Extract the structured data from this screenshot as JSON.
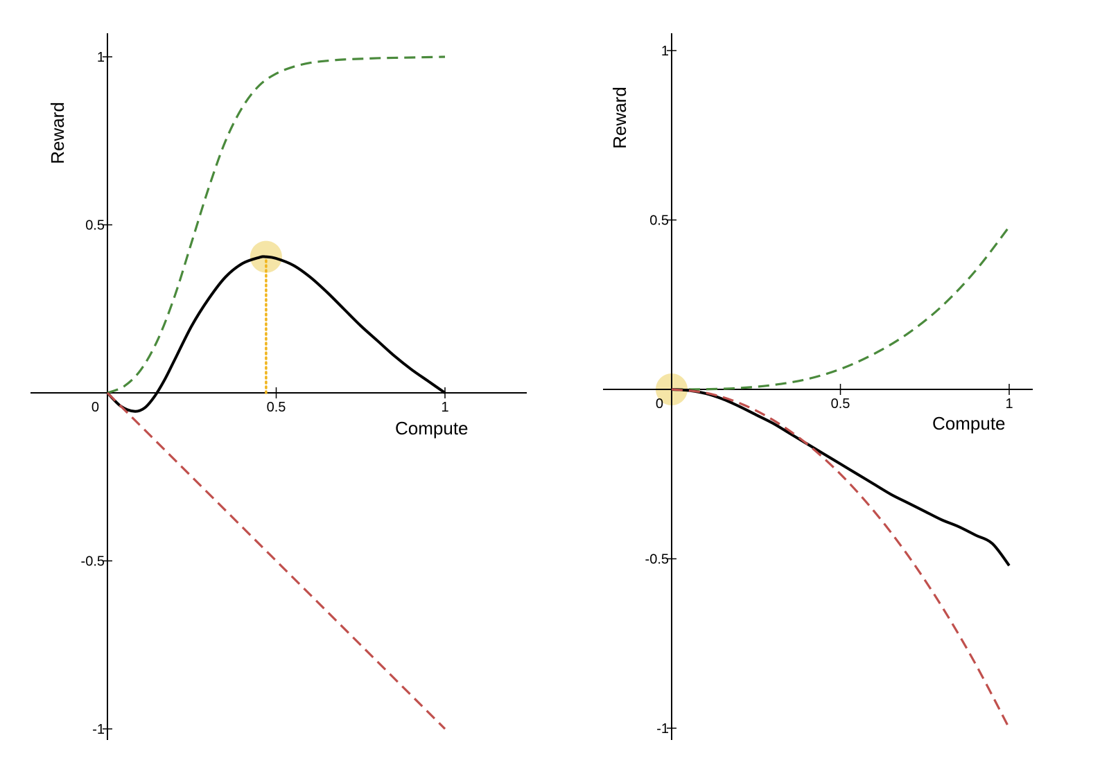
{
  "chart_data": [
    {
      "type": "line",
      "xlabel": "Compute",
      "ylabel": "Reward",
      "xlim": [
        0,
        1
      ],
      "ylim": [
        -1,
        1
      ],
      "x_ticks": [
        {
          "value": 0,
          "label": "0"
        },
        {
          "value": 0.5,
          "label": "0.5"
        },
        {
          "value": 1,
          "label": "1"
        }
      ],
      "y_ticks": [
        {
          "value": 1,
          "label": "1"
        },
        {
          "value": 0.5,
          "label": "0.5"
        },
        {
          "value": -0.5,
          "label": "-0.5"
        },
        {
          "value": -1,
          "label": "-1"
        }
      ],
      "series": [
        {
          "style": "dashed",
          "color": "#4a8a3c",
          "x": [
            0,
            0.05,
            0.1,
            0.15,
            0.2,
            0.25,
            0.3,
            0.35,
            0.4,
            0.45,
            0.5,
            0.55,
            0.6,
            0.65,
            0.7,
            0.75,
            0.8,
            0.85,
            0.9,
            0.95,
            1
          ],
          "y": [
            0,
            0.02,
            0.07,
            0.16,
            0.29,
            0.45,
            0.61,
            0.75,
            0.85,
            0.915,
            0.95,
            0.97,
            0.982,
            0.988,
            0.992,
            0.994,
            0.996,
            0.997,
            0.998,
            0.999,
            1
          ]
        },
        {
          "style": "solid",
          "color": "#000000",
          "x": [
            0,
            0.04,
            0.08,
            0.11,
            0.14,
            0.17,
            0.2,
            0.25,
            0.3,
            0.35,
            0.4,
            0.45,
            0.47,
            0.5,
            0.55,
            0.6,
            0.65,
            0.7,
            0.75,
            0.8,
            0.85,
            0.9,
            0.95,
            1
          ],
          "y": [
            0,
            -0.04,
            -0.055,
            -0.045,
            -0.01,
            0.04,
            0.1,
            0.2,
            0.28,
            0.345,
            0.385,
            0.403,
            0.405,
            0.4,
            0.38,
            0.345,
            0.3,
            0.25,
            0.2,
            0.155,
            0.11,
            0.07,
            0.035,
            0
          ]
        },
        {
          "style": "dashed",
          "color": "#c0504d",
          "x": [
            0,
            0.25,
            0.5,
            0.75,
            1
          ],
          "y": [
            0,
            -0.25,
            -0.5,
            -0.75,
            -1
          ]
        }
      ],
      "highlight_point": {
        "x": 0.47,
        "y": 0.405,
        "color": "#f2dc8a"
      },
      "drop_line": {
        "x": 0.47,
        "from_y": 0,
        "to_y": 0.405,
        "color": "#f0b41c",
        "style": "dotted"
      }
    },
    {
      "type": "line",
      "xlabel": "Compute",
      "ylabel": "Reward",
      "xlim": [
        0,
        1
      ],
      "ylim": [
        -1,
        1
      ],
      "x_ticks": [
        {
          "value": 0,
          "label": "0"
        },
        {
          "value": 0.5,
          "label": "0.5"
        },
        {
          "value": 1,
          "label": "1"
        }
      ],
      "y_ticks": [
        {
          "value": 1,
          "label": "1"
        },
        {
          "value": 0.5,
          "label": "0.5"
        },
        {
          "value": -0.5,
          "label": "-0.5"
        },
        {
          "value": -1,
          "label": "-1"
        }
      ],
      "series": [
        {
          "style": "dashed",
          "color": "#4a8a3c",
          "x": [
            0,
            0.1,
            0.2,
            0.3,
            0.4,
            0.5,
            0.6,
            0.7,
            0.8,
            0.9,
            1
          ],
          "y": [
            0,
            0.0005,
            0.004,
            0.013,
            0.03,
            0.06,
            0.105,
            0.165,
            0.245,
            0.35,
            0.48
          ]
        },
        {
          "style": "solid",
          "color": "#000000",
          "x": [
            0,
            0.05,
            0.1,
            0.15,
            0.2,
            0.25,
            0.3,
            0.35,
            0.4,
            0.45,
            0.5,
            0.55,
            0.6,
            0.65,
            0.7,
            0.75,
            0.8,
            0.85,
            0.9,
            0.95,
            1
          ],
          "y": [
            0,
            -0.003,
            -0.012,
            -0.028,
            -0.05,
            -0.075,
            -0.1,
            -0.13,
            -0.16,
            -0.19,
            -0.22,
            -0.25,
            -0.28,
            -0.31,
            -0.335,
            -0.36,
            -0.385,
            -0.405,
            -0.43,
            -0.455,
            -0.52
          ]
        },
        {
          "style": "dashed",
          "color": "#c0504d",
          "x": [
            0,
            0.1,
            0.2,
            0.3,
            0.4,
            0.5,
            0.6,
            0.7,
            0.8,
            0.9,
            1
          ],
          "y": [
            0,
            -0.01,
            -0.04,
            -0.09,
            -0.16,
            -0.25,
            -0.36,
            -0.49,
            -0.64,
            -0.81,
            -1
          ]
        }
      ],
      "highlight_point": {
        "x": 0,
        "y": 0,
        "color": "#f2dc8a"
      }
    }
  ]
}
